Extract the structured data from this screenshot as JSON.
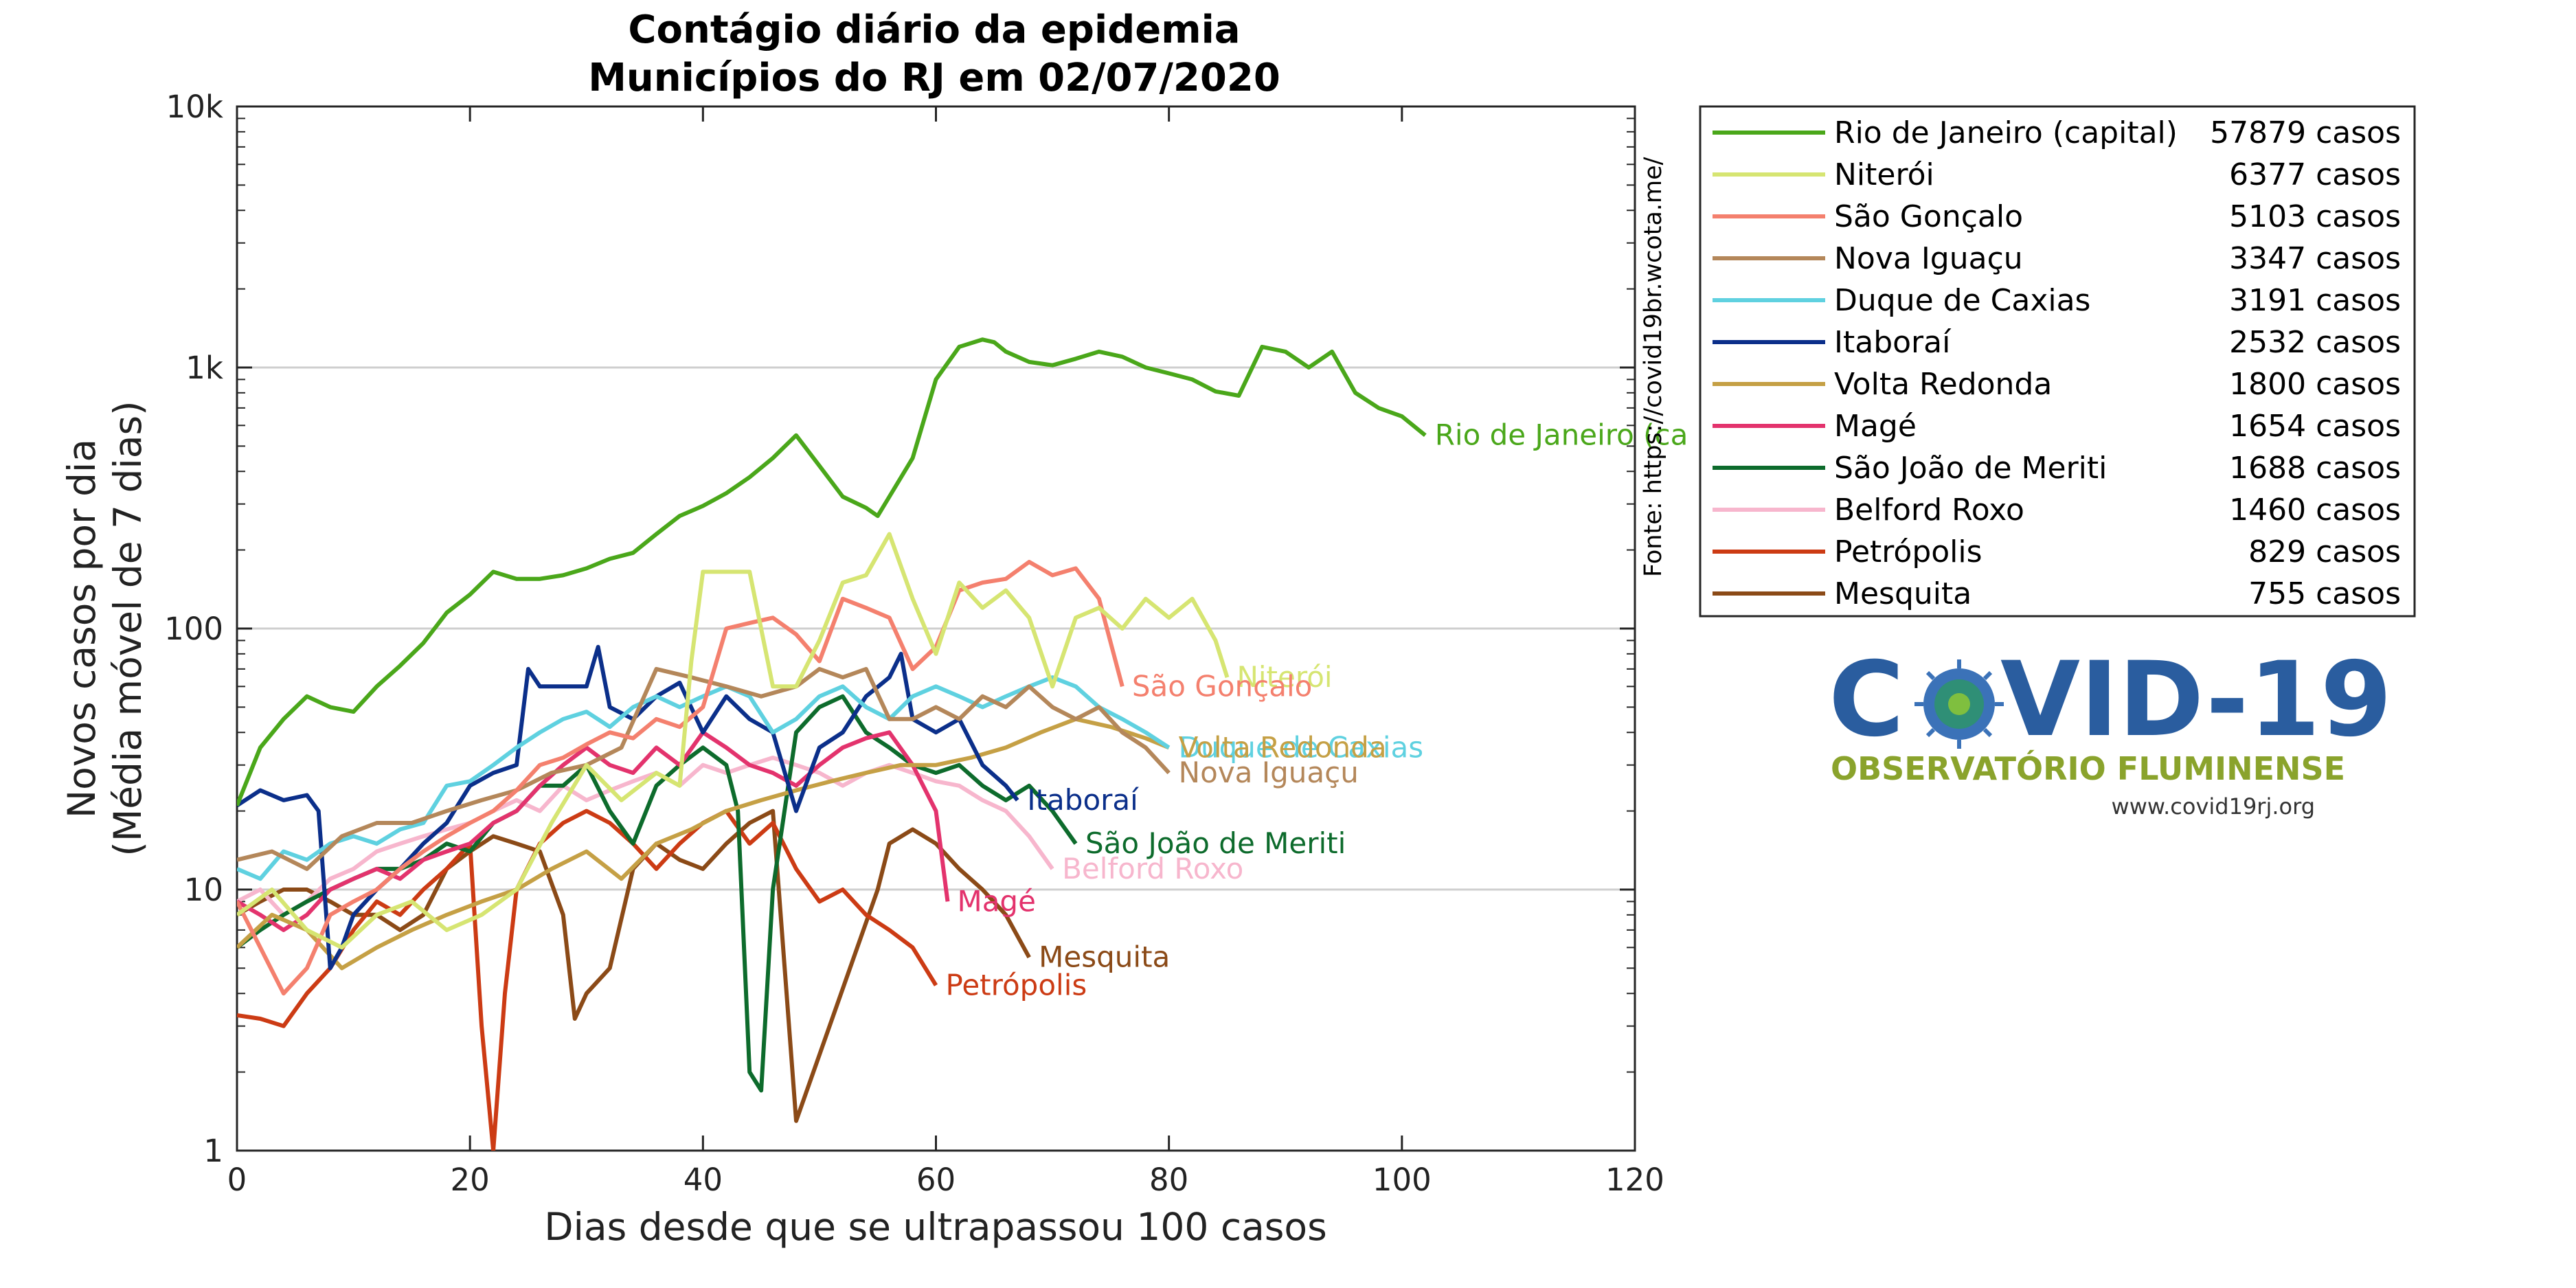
{
  "chart_data": {
    "type": "line",
    "title": [
      "Contágio diário da epidemia",
      "Municípios do RJ em 02/07/2020"
    ],
    "xlabel": "Dias desde que se ultrapassou 100 casos",
    "ylabel": [
      "Novos casos por dia",
      "(Média móvel de 7 dias)"
    ],
    "xlim": [
      0,
      120
    ],
    "ylim": [
      1,
      10000
    ],
    "yscale": "log",
    "xticks": [
      0,
      20,
      40,
      60,
      80,
      100,
      120
    ],
    "yticks": [
      1,
      10,
      100,
      1000,
      10000
    ],
    "ytick_labels": [
      "1",
      "10",
      "100",
      "1k",
      "10k"
    ],
    "grid": "horizontal",
    "legend_position": "right",
    "source": "Fonte: https://covid19br.wcota.me/",
    "series": [
      {
        "name": "Rio de Janeiro (capital)",
        "label": "Rio de Janeiro (ca",
        "cases": "57879 casos",
        "color": "#4aa71a",
        "x": [
          0,
          2,
          4,
          6,
          8,
          10,
          12,
          14,
          16,
          18,
          20,
          22,
          24,
          26,
          28,
          30,
          32,
          34,
          36,
          38,
          40,
          42,
          44,
          46,
          48,
          50,
          52,
          54,
          55,
          56,
          58,
          60,
          62,
          64,
          65,
          66,
          68,
          70,
          72,
          74,
          76,
          78,
          80,
          82,
          84,
          86,
          88,
          90,
          92,
          94,
          96,
          98,
          100,
          102
        ],
        "y": [
          21,
          35,
          45,
          55,
          50,
          48,
          60,
          72,
          88,
          115,
          135,
          165,
          155,
          155,
          160,
          170,
          185,
          195,
          230,
          270,
          295,
          330,
          380,
          450,
          550,
          420,
          320,
          290,
          270,
          320,
          450,
          900,
          1200,
          1280,
          1250,
          1150,
          1050,
          1020,
          1080,
          1150,
          1100,
          1000,
          950,
          900,
          810,
          780,
          1200,
          1150,
          1000,
          1150,
          800,
          700,
          650,
          550
        ]
      },
      {
        "name": "Niterói",
        "label": "Niterói",
        "cases": "6377 casos",
        "color": "#d6e572",
        "x": [
          0,
          3,
          6,
          9,
          12,
          15,
          18,
          21,
          24,
          27,
          30,
          33,
          36,
          38,
          39,
          40,
          42,
          44,
          46,
          48,
          50,
          52,
          54,
          56,
          58,
          60,
          62,
          64,
          66,
          68,
          70,
          72,
          74,
          76,
          78,
          80,
          82,
          84,
          85
        ],
        "y": [
          8,
          10,
          7,
          6,
          8,
          9,
          7,
          8,
          10,
          18,
          30,
          22,
          28,
          25,
          75,
          165,
          165,
          165,
          60,
          60,
          90,
          150,
          160,
          230,
          130,
          80,
          150,
          120,
          140,
          110,
          60,
          110,
          120,
          100,
          130,
          110,
          130,
          90,
          65
        ]
      },
      {
        "name": "São Gonçalo",
        "label": "São Gonçalo",
        "cases": "5103 casos",
        "color": "#f4806e",
        "x": [
          0,
          2,
          4,
          6,
          8,
          10,
          12,
          14,
          16,
          18,
          20,
          22,
          24,
          26,
          28,
          30,
          32,
          34,
          36,
          38,
          40,
          42,
          44,
          46,
          48,
          50,
          52,
          54,
          56,
          58,
          60,
          62,
          64,
          66,
          68,
          70,
          72,
          74,
          76
        ],
        "y": [
          9,
          6,
          4,
          5,
          8,
          9,
          10,
          12,
          14,
          16,
          18,
          20,
          24,
          30,
          32,
          36,
          40,
          38,
          45,
          42,
          50,
          100,
          105,
          110,
          95,
          75,
          130,
          120,
          110,
          70,
          85,
          140,
          150,
          155,
          180,
          160,
          170,
          130,
          60
        ]
      },
      {
        "name": "Nova Iguaçu",
        "label": "Nova Iguaçu",
        "cases": "3347 casos",
        "color": "#b4875a",
        "x": [
          0,
          3,
          6,
          9,
          12,
          15,
          18,
          21,
          24,
          27,
          30,
          33,
          36,
          39,
          42,
          45,
          48,
          50,
          52,
          54,
          56,
          58,
          60,
          62,
          64,
          66,
          68,
          70,
          72,
          74,
          76,
          78,
          80
        ],
        "y": [
          13,
          14,
          12,
          16,
          18,
          18,
          20,
          22,
          24,
          28,
          30,
          35,
          70,
          65,
          60,
          55,
          60,
          70,
          65,
          70,
          45,
          45,
          50,
          45,
          55,
          50,
          60,
          50,
          45,
          50,
          40,
          35,
          28
        ]
      },
      {
        "name": "Duque de Caxias",
        "label": "Duque de Caxias",
        "cases": "3191 casos",
        "color": "#5fd1e0",
        "x": [
          0,
          2,
          4,
          6,
          8,
          10,
          12,
          14,
          16,
          18,
          20,
          22,
          24,
          26,
          28,
          30,
          32,
          34,
          36,
          38,
          40,
          42,
          44,
          46,
          48,
          50,
          52,
          54,
          56,
          58,
          60,
          62,
          64,
          66,
          68,
          70,
          72,
          74,
          76,
          78,
          80
        ],
        "y": [
          12,
          11,
          14,
          13,
          15,
          16,
          15,
          17,
          18,
          25,
          26,
          30,
          35,
          40,
          45,
          48,
          42,
          50,
          55,
          50,
          55,
          60,
          55,
          40,
          45,
          55,
          60,
          50,
          45,
          55,
          60,
          55,
          50,
          55,
          60,
          65,
          60,
          50,
          45,
          40,
          35
        ]
      },
      {
        "name": "Itaboraí",
        "label": "Itaboraí",
        "cases": "2532 casos",
        "color": "#0b2f8a",
        "x": [
          0,
          2,
          4,
          6,
          7,
          8,
          9,
          10,
          12,
          14,
          16,
          18,
          20,
          22,
          24,
          25,
          26,
          28,
          30,
          31,
          32,
          34,
          36,
          38,
          40,
          42,
          44,
          46,
          48,
          50,
          52,
          54,
          56,
          57,
          58,
          60,
          62,
          64,
          66,
          67
        ],
        "y": [
          21,
          24,
          22,
          23,
          20,
          5,
          6,
          8,
          10,
          12,
          15,
          18,
          25,
          28,
          30,
          70,
          60,
          60,
          60,
          85,
          50,
          45,
          55,
          62,
          40,
          55,
          45,
          40,
          20,
          35,
          40,
          55,
          65,
          80,
          45,
          40,
          45,
          30,
          25,
          22
        ]
      },
      {
        "name": "Volta Redonda",
        "label": "Volta Redonda",
        "cases": "1800 casos",
        "color": "#c5a045",
        "x": [
          0,
          3,
          6,
          9,
          12,
          15,
          18,
          21,
          24,
          27,
          30,
          33,
          36,
          39,
          42,
          45,
          48,
          51,
          54,
          57,
          60,
          63,
          66,
          69,
          72,
          75,
          78,
          80
        ],
        "y": [
          6,
          8,
          7,
          5,
          6,
          7,
          8,
          9,
          10,
          12,
          14,
          11,
          15,
          17,
          20,
          22,
          24,
          26,
          28,
          30,
          30,
          32,
          35,
          40,
          45,
          42,
          38,
          35
        ]
      },
      {
        "name": "Magé",
        "label": "Magé",
        "cases": "1654 casos",
        "color": "#e3336d",
        "x": [
          0,
          2,
          4,
          6,
          8,
          10,
          12,
          14,
          16,
          18,
          20,
          22,
          24,
          26,
          28,
          30,
          32,
          34,
          36,
          38,
          40,
          42,
          44,
          46,
          48,
          50,
          52,
          54,
          56,
          58,
          60,
          61
        ],
        "y": [
          9,
          8,
          7,
          8,
          10,
          11,
          12,
          11,
          13,
          14,
          15,
          18,
          20,
          25,
          30,
          35,
          30,
          28,
          35,
          30,
          40,
          35,
          30,
          28,
          25,
          30,
          35,
          38,
          40,
          30,
          20,
          9
        ]
      },
      {
        "name": "São João de Meriti",
        "label": "São João de Meriti",
        "cases": "1688 casos",
        "color": "#0d6b2c",
        "x": [
          0,
          2,
          4,
          6,
          8,
          10,
          12,
          14,
          16,
          18,
          20,
          22,
          24,
          26,
          28,
          30,
          32,
          34,
          36,
          38,
          40,
          42,
          43,
          44,
          45,
          46,
          48,
          50,
          52,
          54,
          56,
          58,
          60,
          62,
          64,
          66,
          68,
          70,
          72
        ],
        "y": [
          6,
          7,
          8,
          9,
          10,
          11,
          12,
          12,
          13,
          15,
          14,
          18,
          20,
          25,
          25,
          30,
          20,
          15,
          25,
          30,
          35,
          30,
          20,
          2,
          1.7,
          10,
          40,
          50,
          55,
          40,
          35,
          30,
          28,
          30,
          25,
          22,
          25,
          20,
          15
        ]
      },
      {
        "name": "Belford Roxo",
        "label": "Belford Roxo",
        "cases": "1460 casos",
        "color": "#f7b6cd",
        "x": [
          0,
          2,
          4,
          6,
          8,
          10,
          12,
          14,
          16,
          18,
          20,
          22,
          24,
          26,
          28,
          30,
          32,
          34,
          36,
          38,
          40,
          42,
          44,
          46,
          48,
          50,
          52,
          54,
          56,
          58,
          60,
          62,
          64,
          66,
          68,
          70
        ],
        "y": [
          9,
          10,
          8,
          9,
          11,
          12,
          14,
          15,
          16,
          17,
          18,
          20,
          22,
          20,
          25,
          22,
          24,
          26,
          28,
          25,
          30,
          28,
          30,
          32,
          30,
          28,
          25,
          28,
          30,
          28,
          26,
          25,
          22,
          20,
          16,
          12
        ]
      },
      {
        "name": "Petrópolis",
        "label": "Petrópolis",
        "cases": "829 casos",
        "color": "#cc3b14",
        "x": [
          0,
          2,
          4,
          6,
          8,
          10,
          12,
          14,
          16,
          18,
          20,
          21,
          22,
          23,
          24,
          26,
          28,
          30,
          32,
          34,
          36,
          38,
          40,
          42,
          44,
          46,
          48,
          50,
          52,
          54,
          56,
          58,
          60
        ],
        "y": [
          3.3,
          3.2,
          3,
          4,
          5,
          7,
          9,
          8,
          10,
          12,
          15,
          3,
          1,
          4,
          10,
          15,
          18,
          20,
          18,
          15,
          12,
          15,
          18,
          20,
          15,
          18,
          12,
          9,
          10,
          8,
          7,
          6,
          4.3
        ]
      },
      {
        "name": "Mesquita",
        "label": "Mesquita",
        "cases": "755 casos",
        "color": "#8b4a17",
        "x": [
          0,
          2,
          4,
          6,
          8,
          10,
          12,
          14,
          16,
          18,
          20,
          22,
          24,
          26,
          28,
          29,
          30,
          32,
          34,
          36,
          38,
          40,
          42,
          44,
          46,
          48,
          55,
          56,
          58,
          60,
          62,
          64,
          66,
          68
        ],
        "y": [
          8,
          9,
          10,
          10,
          9,
          8,
          8,
          7,
          8,
          12,
          14,
          16,
          15,
          14,
          8,
          3.2,
          4,
          5,
          12,
          15,
          13,
          12,
          15,
          18,
          20,
          1.3,
          10,
          15,
          17,
          15,
          12,
          10,
          8,
          5.5
        ]
      }
    ]
  },
  "logo": {
    "word_left": "C",
    "word_right": "VID-19",
    "subtitle": "OBSERVATÓRIO FLUMINENSE",
    "url": "www.covid19rj.org"
  }
}
